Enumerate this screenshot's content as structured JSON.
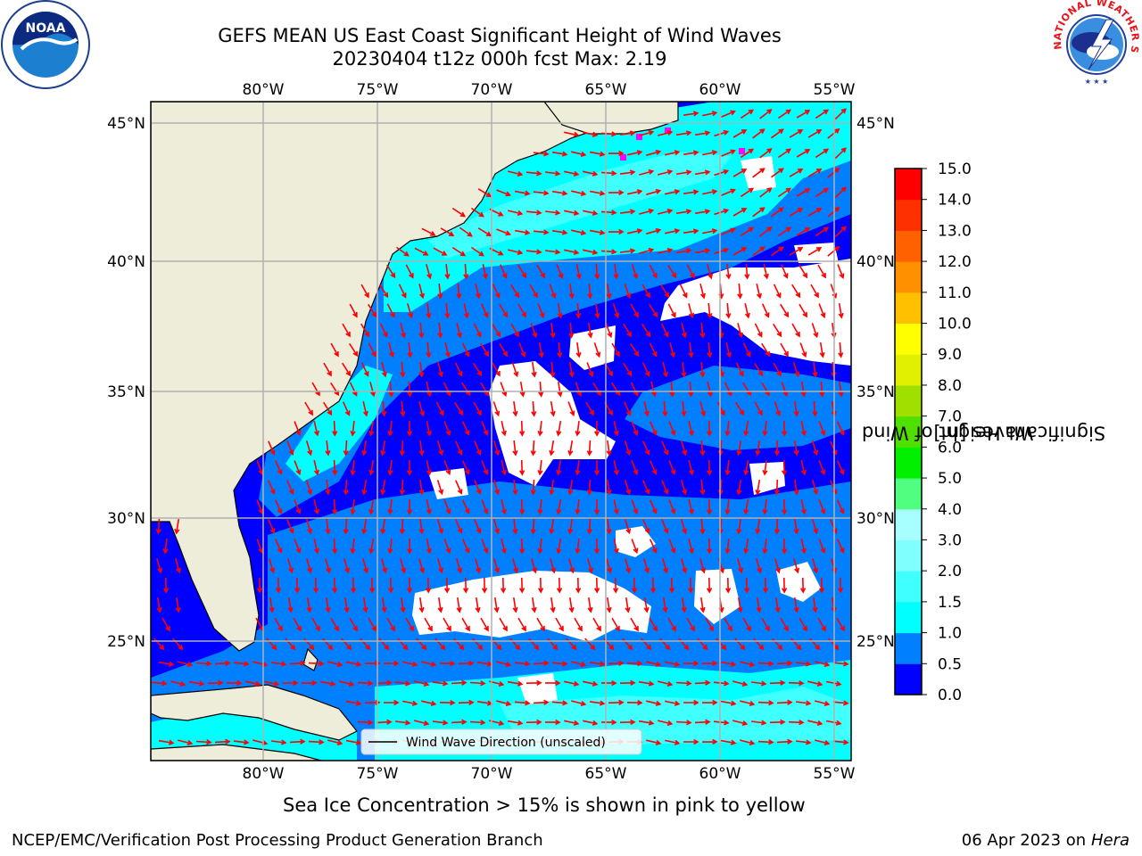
{
  "title": {
    "line1": "GEFS MEAN US East Coast Significant Height of Wind Waves",
    "line2": "20230404 t12z 000h fcst   Max: 2.19"
  },
  "logos": {
    "left": {
      "text": "NOAA",
      "icon": "noaa-logo-icon"
    },
    "right": {
      "text": "NATIONAL WEATHER SERVICE",
      "icon": "nws-logo-icon"
    }
  },
  "map": {
    "lon_labels": [
      "80°W",
      "75°W",
      "70°W",
      "65°W",
      "60°W",
      "55°W"
    ],
    "lat_labels": [
      "45°N",
      "40°N",
      "35°N",
      "30°N",
      "25°N"
    ],
    "legend_label": "Wind Wave Direction (unscaled)",
    "colors": {
      "land": "#eeedda",
      "gridline": "#b0b0b0",
      "arrow": "#ff0000",
      "ice": "#ff00ff"
    }
  },
  "colorbar": {
    "label_line1": "Significant Height of Wind",
    "label_line2": "Waves [m]",
    "ticks": [
      "15.0",
      "14.0",
      "13.0",
      "12.0",
      "11.0",
      "10.0",
      "9.0",
      "8.0",
      "7.0",
      "6.0",
      "5.0",
      "4.0",
      "3.0",
      "2.0",
      "1.5",
      "1.0",
      "0.5",
      "0.0"
    ],
    "colors_bottom_to_top": [
      "#0000ff",
      "#0080ff",
      "#00ffff",
      "#40ffff",
      "#80ffff",
      "#a8ffff",
      "#50ff80",
      "#00f000",
      "#50e000",
      "#a0e000",
      "#e0f000",
      "#ffff00",
      "#ffc000",
      "#ff9000",
      "#ff6000",
      "#ff3000",
      "#ff0000"
    ]
  },
  "subfooter": "Sea Ice Concentration > 15% is shown in pink to yellow",
  "footer": {
    "left": "NCEP/EMC/Verification Post Processing Product Generation Branch",
    "right_prefix": "06 Apr 2023 on ",
    "right_machine": "Hera"
  }
}
